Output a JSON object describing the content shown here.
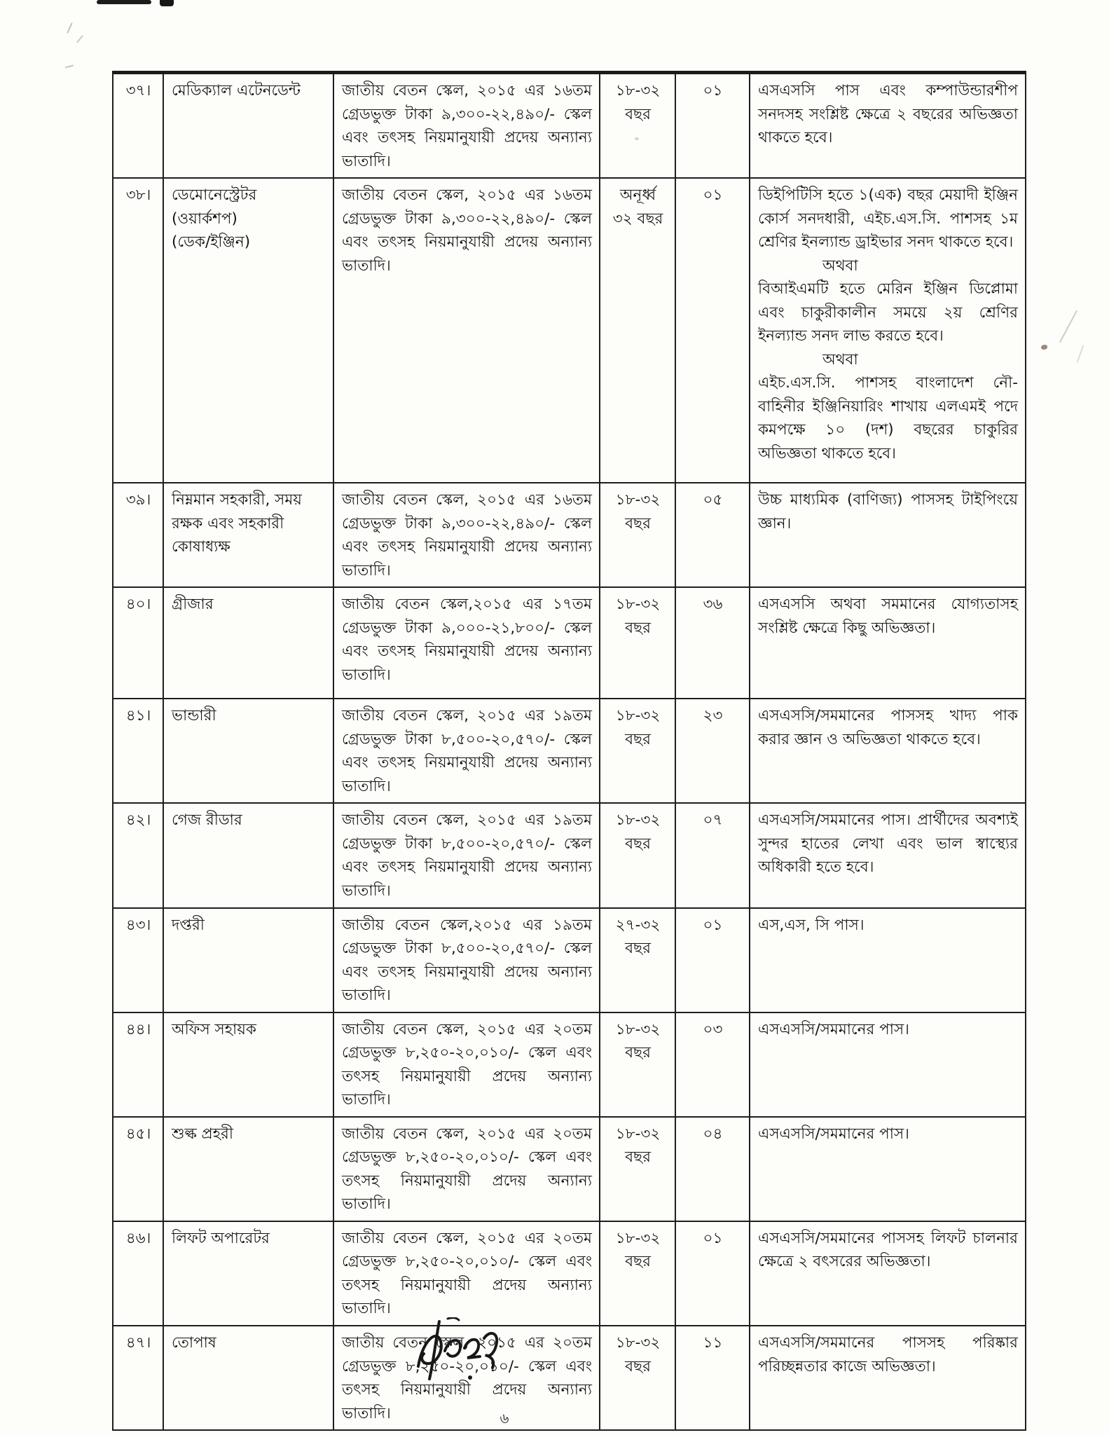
{
  "page": {
    "number": "৬"
  },
  "table": {
    "rows": [
      {
        "serial": "৩৭।",
        "post": "মেডিক্যাল এটেনডেন্ট",
        "pay": "জাতীয় বেতন স্কেল, ২০১৫ এর ১৬তম গ্রেডভুক্ত টাকা ৯,৩০০-২২,৪৯০/- স্কেল এবং তৎসহ নিয়মানুযায়ী প্রদেয় অন্যান্য ভাতাদি।",
        "age": "১৮-৩২\nবছর",
        "count": "০১",
        "qualification": [
          "এসএসসি পাস এবং কম্পাউন্ডারশীপ সনদসহ সংশ্লিষ্ট ক্ষেত্রে ২ বছরের অভিজ্ঞতা থাকতে হবে।"
        ]
      },
      {
        "serial": "৩৮।",
        "post": "ডেমোনেস্ট্রেটর\n(ওয়ার্কশপ)\n(ডেক/ইঞ্জিন)",
        "pay": "জাতীয় বেতন স্কেল, ২০১৫ এর ১৬তম গ্রেডভুক্ত টাকা ৯,৩০০-২২,৪৯০/- স্কেল এবং তৎসহ নিয়মানুযায়ী প্রদেয় অন্যান্য ভাতাদি।",
        "age": "অনূর্ধ্ব\n৩২ বছর",
        "count": "০১",
        "qualification": [
          "ডিইপিটিসি হতে ১(এক) বছর মেয়াদী ইঞ্জিন কোর্স সনদধারী, এইচ.এস.সি. পাশসহ ১ম শ্রেণির ইনল্যান্ড ড্রাইভার সনদ থাকতে হবে।",
          "অথবা",
          "বিআইএমটি হতে মেরিন ইঞ্জিন ডিপ্লোমা এবং চাকুরীকালীন সময়ে ২য় শ্রেণির ইনল্যান্ড সনদ লাভ করতে হবে।",
          "অথবা",
          "এইচ.এস.সি. পাশসহ বাংলাদেশ নৌ-বাহিনীর ইঞ্জিনিয়ারিং শাখায় এলএমই পদে কমপক্ষে ১০ (দশ) বছরের চাকুরির অভিজ্ঞতা থাকতে হবে।"
        ]
      },
      {
        "serial": "৩৯।",
        "post": "নিম্নমান সহকারী, সময়\nরক্ষক এবং সহকারী\nকোষাধ্যক্ষ",
        "pay": "জাতীয় বেতন স্কেল, ২০১৫ এর ১৬তম গ্রেডভুক্ত টাকা ৯,৩০০-২২,৪৯০/- স্কেল এবং তৎসহ নিয়মানুযায়ী প্রদেয় অন্যান্য ভাতাদি।",
        "age": "১৮-৩২\nবছর",
        "count": "০৫",
        "qualification": [
          "উচ্চ মাধ্যমিক (বাণিজ্য) পাসসহ টাইপিংয়ে জ্ঞান।"
        ]
      },
      {
        "serial": "৪০।",
        "post": "গ্রীজার",
        "pay": "জাতীয় বেতন স্কেল,২০১৫ এর ১৭তম গ্রেডভুক্ত টাকা ৯,০০০-২১,৮০০/- স্কেল এবং তৎসহ নিয়মানুযায়ী প্রদেয় অন্যান্য ভাতাদি।",
        "age": "১৮-৩২\nবছর",
        "count": "৩৬",
        "qualification": [
          "এসএসসি অথবা সমমানের যোগ্যতাসহ সংশ্লিষ্ট ক্ষেত্রে কিছু অভিজ্ঞতা।"
        ]
      },
      {
        "serial": "৪১।",
        "post": "ভান্ডারী",
        "pay": "জাতীয় বেতন স্কেল, ২০১৫ এর ১৯তম গ্রেডভুক্ত টাকা ৮,৫০০-২০,৫৭০/- স্কেল এবং তৎসহ নিয়মানুযায়ী প্রদেয় অন্যান্য ভাতাদি।",
        "age": "১৮-৩২\nবছর",
        "count": "২৩",
        "qualification": [
          "এসএসসি/সমমানের পাসসহ খাদ্য পাক করার জ্ঞান ও অভিজ্ঞতা থাকতে হবে।"
        ]
      },
      {
        "serial": "৪২।",
        "post": "গেজ রীডার",
        "pay": "জাতীয় বেতন স্কেল, ২০১৫ এর ১৯তম গ্রেডভুক্ত টাকা ৮,৫০০-২০,৫৭০/- স্কেল এবং তৎসহ নিয়মানুযায়ী প্রদেয় অন্যান্য ভাতাদি।",
        "age": "১৮-৩২\nবছর",
        "count": "০৭",
        "qualification": [
          "এসএসসি/সমমানের পাস। প্রার্থীদের অবশ্যই সুন্দর হাতের লেখা এবং ভাল স্বাস্থ্যের অধিকারী হতে হবে।"
        ]
      },
      {
        "serial": "৪৩।",
        "post": "দপ্তরী",
        "pay": "জাতীয় বেতন স্কেল,২০১৫ এর ১৯তম গ্রেডভুক্ত টাকা ৮,৫০০-২০,৫৭০/- স্কেল এবং তৎসহ নিয়মানুযায়ী প্রদেয় অন্যান্য ভাতাদি।",
        "age": "২৭-৩২\nবছর",
        "count": "০১",
        "qualification": [
          "এস,এস, সি পাস।"
        ]
      },
      {
        "serial": "৪৪।",
        "post": "অফিস সহায়ক",
        "pay": "জাতীয় বেতন স্কেল, ২০১৫ এর ২০তম গ্রেডভুক্ত ৮,২৫০-২০,০১০/- স্কেল এবং তৎসহ নিয়মানুযায়ী প্রদেয় অন্যান্য ভাতাদি।",
        "age": "১৮-৩২\nবছর",
        "count": "০৩",
        "qualification": [
          "এসএসসি/সমমানের পাস।"
        ]
      },
      {
        "serial": "৪৫।",
        "post": "শুল্ক প্রহরী",
        "pay": "জাতীয় বেতন স্কেল, ২০১৫ এর ২০তম গ্রেডভুক্ত ৮,২৫০-২০,০১০/- স্কেল এবং তৎসহ নিয়মানুযায়ী প্রদেয় অন্যান্য ভাতাদি।",
        "age": "১৮-৩২\nবছর",
        "count": "০৪",
        "qualification": [
          "এসএসসি/সমমানের পাস।"
        ]
      },
      {
        "serial": "৪৬।",
        "post": "লিফট অপারেটর",
        "pay": "জাতীয় বেতন স্কেল, ২০১৫ এর ২০তম গ্রেডভুক্ত ৮,২৫০-২০,০১০/- স্কেল এবং তৎসহ নিয়মানুযায়ী প্রদেয় অন্যান্য ভাতাদি।",
        "age": "১৮-৩২\nবছর",
        "count": "০১",
        "qualification": [
          "এসএসসি/সমমানের পাসসহ লিফট চালনার ক্ষেত্রে ২ বৎসরের অভিজ্ঞতা।"
        ]
      },
      {
        "serial": "৪৭।",
        "post": "তোপাষ",
        "pay": "জাতীয় বেতন স্কেল, ২০১৫ এর ২০তম গ্রেডভুক্ত ৮,২৫০-২০,০১০/- স্কেল এবং তৎসহ নিয়মানুযায়ী প্রদেয় অন্যান্য ভাতাদি।",
        "age": "১৮-৩২\nবছর",
        "count": "১১",
        "qualification": [
          "এসএসসি/সমমানের পাসসহ পরিষ্কার পরিচ্ছন্নতার কাজে অভিজ্ঞতা।"
        ]
      }
    ]
  }
}
